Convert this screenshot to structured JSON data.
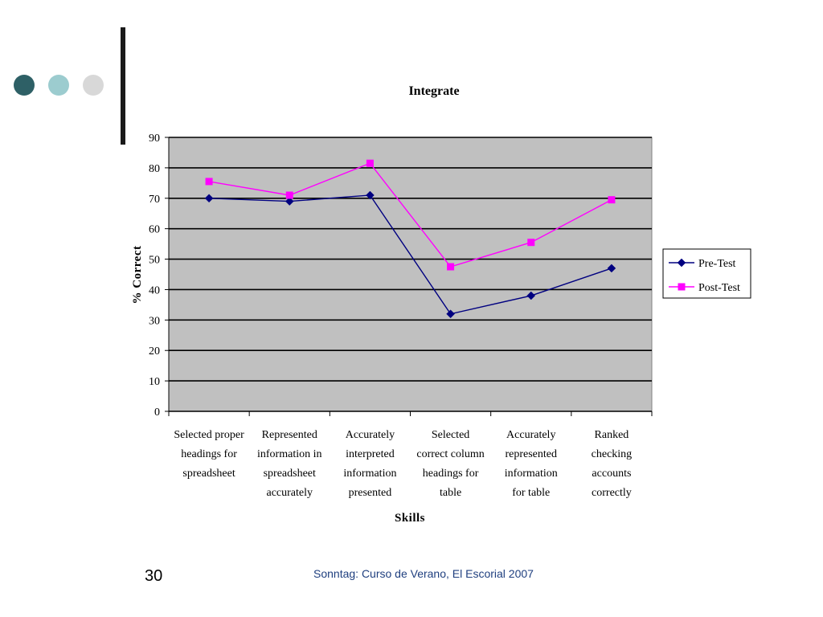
{
  "slide": {
    "number": "30",
    "footer": "Sonntag: Curso de Verano, El Escorial 2007"
  },
  "colors": {
    "dot1": "#2e6066",
    "dot2": "#9ccccf",
    "dot3": "#d8d8d8",
    "plot_bg": "#c0c0c0",
    "text": "#000000",
    "footer_text": "#1f3f7f",
    "pre_test": "#000080",
    "post_test": "#ff00ff"
  },
  "chart_data": {
    "type": "line",
    "title": "Integrate",
    "xlabel": "Skills",
    "ylabel": "% Correct",
    "ylim": [
      0,
      90
    ],
    "yticks": [
      0,
      10,
      20,
      30,
      40,
      50,
      60,
      70,
      80,
      90
    ],
    "grid": true,
    "legend_position": "right",
    "categories": [
      [
        "Selected proper",
        "headings for",
        "spreadsheet"
      ],
      [
        "Represented",
        "information in",
        "spreadsheet",
        "accurately"
      ],
      [
        "Accurately",
        "interpreted",
        "information",
        "presented"
      ],
      [
        "Selected",
        "correct column",
        "headings for",
        "table"
      ],
      [
        "Accurately",
        "represented",
        "information",
        "for  table"
      ],
      [
        "Ranked",
        "checking",
        "accounts",
        "correctly"
      ]
    ],
    "series": [
      {
        "name": "Pre-Test",
        "marker": "diamond",
        "values": [
          70,
          69,
          71,
          32,
          38,
          47
        ]
      },
      {
        "name": "Post-Test",
        "marker": "square",
        "values": [
          75.5,
          71,
          81.5,
          47.5,
          55.5,
          69.5
        ]
      }
    ]
  }
}
